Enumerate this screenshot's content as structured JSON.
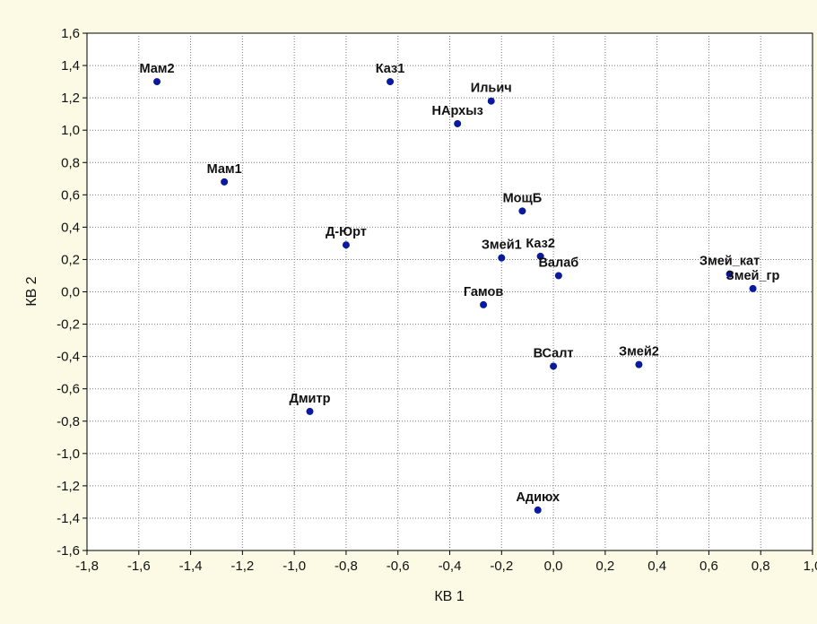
{
  "chart_data": {
    "type": "scatter",
    "title": "",
    "xlabel": "КВ 1",
    "ylabel": "КВ 2",
    "xlim": [
      -1.8,
      1.0
    ],
    "ylim": [
      -1.6,
      1.6
    ],
    "grid": true,
    "x_ticks": [
      "-1,8",
      "-1,6",
      "-1,4",
      "-1,2",
      "-1,0",
      "-0,8",
      "-0,6",
      "-0,4",
      "-0,2",
      "0,0",
      "0,2",
      "0,4",
      "0,6",
      "0,8",
      "1,0"
    ],
    "y_ticks": [
      "1,6",
      "1,4",
      "1,2",
      "1,0",
      "0,8",
      "0,6",
      "0,4",
      "0,2",
      "0,0",
      "-0,2",
      "-0,4",
      "-0,6",
      "-0,8",
      "-1,0",
      "-1,2",
      "-1,4",
      "-1,6"
    ],
    "marker_color": "#0a1a9e",
    "points": [
      {
        "label": "Мам2",
        "x": -1.53,
        "y": 1.3
      },
      {
        "label": "Каз1",
        "x": -0.63,
        "y": 1.3
      },
      {
        "label": "Ильич",
        "x": -0.24,
        "y": 1.18
      },
      {
        "label": "НАрхыз",
        "x": -0.37,
        "y": 1.04
      },
      {
        "label": "Мам1",
        "x": -1.27,
        "y": 0.68
      },
      {
        "label": "МощБ",
        "x": -0.12,
        "y": 0.5
      },
      {
        "label": "Д-Юрт",
        "x": -0.8,
        "y": 0.29
      },
      {
        "label": "Змей1",
        "x": -0.2,
        "y": 0.21
      },
      {
        "label": "Каз2",
        "x": -0.05,
        "y": 0.22
      },
      {
        "label": "Валаб",
        "x": 0.02,
        "y": 0.1
      },
      {
        "label": "Змей_кат",
        "x": 0.68,
        "y": 0.11
      },
      {
        "label": "Змей_гр",
        "x": 0.77,
        "y": 0.02
      },
      {
        "label": "Гамов",
        "x": -0.27,
        "y": -0.08
      },
      {
        "label": "ВСалт",
        "x": 0.0,
        "y": -0.46
      },
      {
        "label": "Змей2",
        "x": 0.33,
        "y": -0.45
      },
      {
        "label": "Дмитр",
        "x": -0.94,
        "y": -0.74
      },
      {
        "label": "Адиюх",
        "x": -0.06,
        "y": -1.35
      }
    ]
  }
}
